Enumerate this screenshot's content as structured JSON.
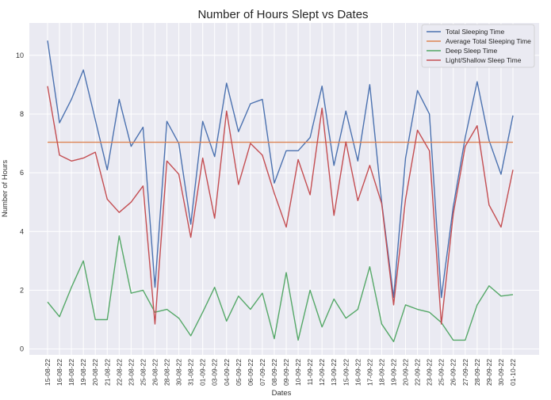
{
  "chart_data": {
    "type": "line",
    "title": "Number of Hours Slept vs Dates",
    "xlabel": "Dates",
    "ylabel": "Number of Hours",
    "ylim": [
      -0.2,
      11.1
    ],
    "yticks": [
      0,
      2,
      4,
      6,
      8,
      10
    ],
    "grid": true,
    "legend_position": "top-right",
    "categories": [
      "15-08-22",
      "16-08-22",
      "18-08-22",
      "19-08-22",
      "20-08-22",
      "21-08-22",
      "22-08-22",
      "23-08-22",
      "25-08-22",
      "26-08-22",
      "28-08-22",
      "30-08-22",
      "31-08-22",
      "01-09-22",
      "03-09-22",
      "04-09-22",
      "05-09-22",
      "06-09-22",
      "07-09-22",
      "08-09-22",
      "09-09-22",
      "10-09-22",
      "11-09-22",
      "12-09-22",
      "13-09-22",
      "15-09-22",
      "16-09-22",
      "17-09-22",
      "18-09-22",
      "19-09-22",
      "20-09-22",
      "22-09-22",
      "23-09-22",
      "25-09-22",
      "26-09-22",
      "27-09-22",
      "28-09-22",
      "29-09-22",
      "30-09-22",
      "01-10-22"
    ],
    "series": [
      {
        "name": "Total Sleeping Time",
        "color": "#4c72b0",
        "values": [
          10.5,
          7.7,
          8.5,
          9.5,
          7.8,
          6.1,
          8.5,
          6.9,
          7.55,
          2.1,
          7.75,
          7.0,
          4.25,
          7.75,
          6.55,
          9.05,
          7.4,
          8.35,
          8.5,
          5.65,
          6.75,
          6.75,
          7.2,
          8.95,
          6.25,
          8.1,
          6.4,
          9.0,
          5.0,
          1.75,
          6.5,
          8.8,
          8.0,
          1.75,
          4.85,
          7.2,
          9.1,
          7.1,
          5.95,
          7.95
        ]
      },
      {
        "name": "Average Total Sleeping Time",
        "color": "#dd8452",
        "values": [
          7.04,
          7.04,
          7.04,
          7.04,
          7.04,
          7.04,
          7.04,
          7.04,
          7.04,
          7.04,
          7.04,
          7.04,
          7.04,
          7.04,
          7.04,
          7.04,
          7.04,
          7.04,
          7.04,
          7.04,
          7.04,
          7.04,
          7.04,
          7.04,
          7.04,
          7.04,
          7.04,
          7.04,
          7.04,
          7.04,
          7.04,
          7.04,
          7.04,
          7.04,
          7.04,
          7.04,
          7.04,
          7.04,
          7.04,
          7.04
        ]
      },
      {
        "name": "Deep Sleep Time",
        "color": "#55a868",
        "values": [
          1.6,
          1.1,
          2.1,
          3.0,
          1.0,
          1.0,
          3.85,
          1.9,
          2.0,
          1.25,
          1.35,
          1.05,
          0.45,
          1.25,
          2.1,
          0.95,
          1.8,
          1.35,
          1.9,
          0.35,
          2.6,
          0.3,
          2.0,
          0.75,
          1.7,
          1.05,
          1.35,
          2.8,
          0.85,
          0.25,
          1.5,
          1.35,
          1.25,
          0.9,
          0.3,
          0.3,
          1.5,
          2.15,
          1.8,
          1.85
        ]
      },
      {
        "name": "Light/Shallow Sleep Time",
        "color": "#c44e52",
        "values": [
          8.95,
          6.6,
          6.4,
          6.5,
          6.7,
          5.1,
          4.65,
          5.0,
          5.55,
          0.85,
          6.4,
          5.95,
          3.8,
          6.5,
          4.45,
          8.1,
          5.6,
          7.0,
          6.6,
          5.3,
          4.15,
          6.45,
          5.25,
          8.2,
          4.55,
          7.05,
          5.05,
          6.25,
          4.95,
          1.5,
          5.1,
          7.45,
          6.75,
          0.85,
          4.6,
          6.9,
          7.6,
          4.9,
          4.15,
          6.1
        ]
      }
    ]
  }
}
